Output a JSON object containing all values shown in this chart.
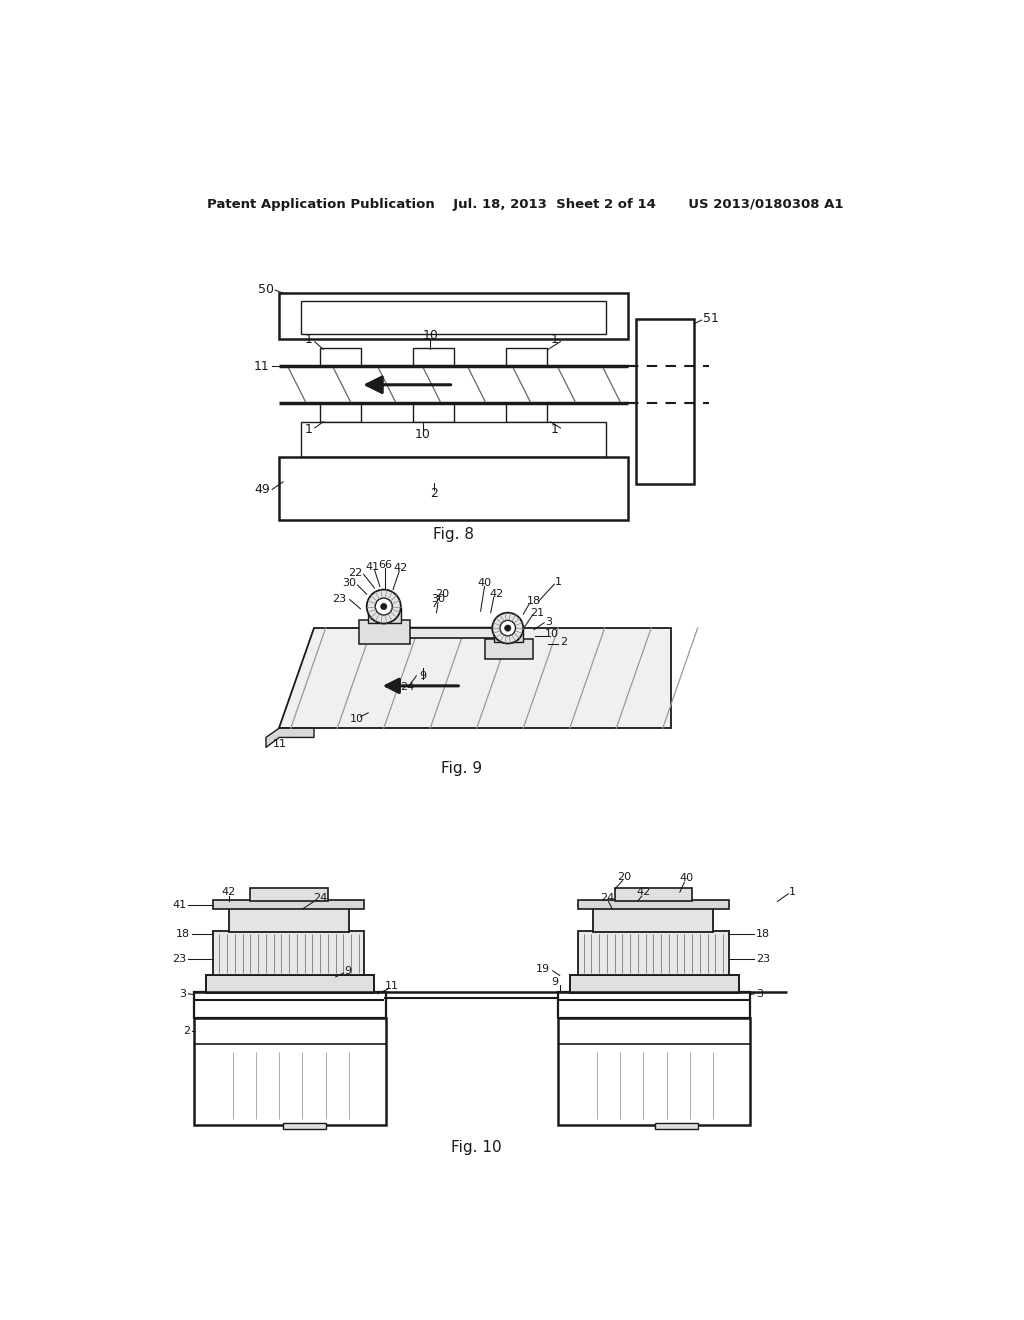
{
  "bg_color": "#ffffff",
  "header": "Patent Application Publication    Jul. 18, 2013  Sheet 2 of 14       US 2013/0180308 A1",
  "fig8_cap": "Fig. 8",
  "fig9_cap": "Fig. 9",
  "fig10_cap": "Fig. 10",
  "lc": "#1a1a1a"
}
